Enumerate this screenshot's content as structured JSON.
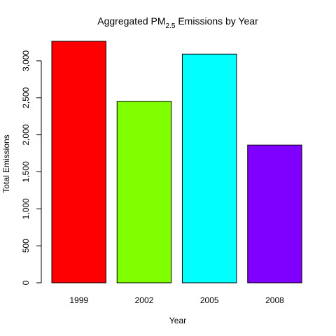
{
  "chart_data": {
    "type": "bar",
    "title_main": "Aggregated PM",
    "title_sub": "2.5",
    "title_rest": " Emissions by Year",
    "xlabel": "Year",
    "ylabel": "Total Emissions",
    "categories": [
      "1999",
      "2002",
      "2005",
      "2008"
    ],
    "values": [
      3264,
      2453,
      3091,
      1862
    ],
    "colors": [
      "#FF0000",
      "#80FF00",
      "#00FFFF",
      "#8000FF"
    ],
    "ylim": [
      0,
      3264
    ],
    "yticks": [
      0,
      500,
      1000,
      1500,
      2000,
      2500,
      3000
    ],
    "ytick_labels": [
      "0",
      "500",
      "1,000",
      "1,500",
      "2,000",
      "2,500",
      "3,000"
    ],
    "grid": false,
    "legend": "none"
  }
}
